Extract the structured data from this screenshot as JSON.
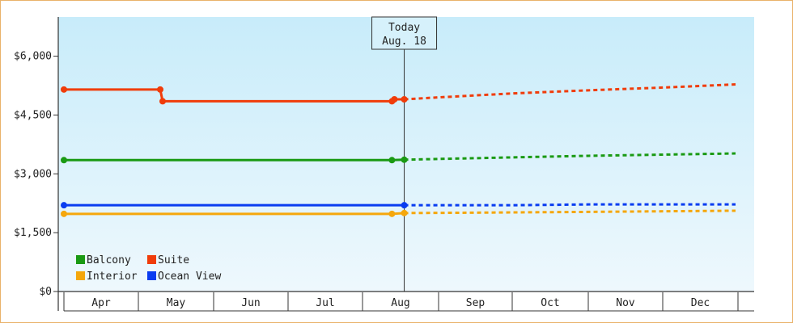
{
  "chart_data": {
    "type": "line",
    "currency": "$",
    "x_axis": {
      "months": [
        "Apr",
        "May",
        "Jun",
        "Jul",
        "Aug",
        "Sep",
        "Oct",
        "Nov",
        "Dec"
      ]
    },
    "y_axis": {
      "ylim": [
        0,
        7000
      ],
      "ticks": [
        0,
        1500,
        3000,
        4500,
        6000
      ],
      "tick_labels": [
        "$0",
        "$1,500",
        "$3,000",
        "$4,500",
        "$6,000"
      ]
    },
    "today": {
      "label": "Today",
      "date_label": "Aug. 18",
      "x": "2023-08-18"
    },
    "series": [
      {
        "name": "Suite",
        "color": "#f03c0a",
        "actual": [
          {
            "x": "2023-04-01",
            "y": 5150
          },
          {
            "x": "2023-05-10",
            "y": 5150
          },
          {
            "x": "2023-05-11",
            "y": 4850
          },
          {
            "x": "2023-08-13",
            "y": 4850
          },
          {
            "x": "2023-08-14",
            "y": 4900
          },
          {
            "x": "2023-08-18",
            "y": 4900
          }
        ],
        "forecast": [
          {
            "x": "2023-08-18",
            "y": 4900
          },
          {
            "x": "2023-09-01",
            "y": 4950
          },
          {
            "x": "2023-10-01",
            "y": 5050
          },
          {
            "x": "2023-11-01",
            "y": 5130
          },
          {
            "x": "2023-12-01",
            "y": 5200
          },
          {
            "x": "2023-12-31",
            "y": 5280
          }
        ]
      },
      {
        "name": "Balcony",
        "color": "#1a9a14",
        "actual": [
          {
            "x": "2023-04-01",
            "y": 3350
          },
          {
            "x": "2023-08-13",
            "y": 3350
          },
          {
            "x": "2023-08-18",
            "y": 3360
          }
        ],
        "forecast": [
          {
            "x": "2023-08-18",
            "y": 3360
          },
          {
            "x": "2023-09-01",
            "y": 3380
          },
          {
            "x": "2023-10-01",
            "y": 3420
          },
          {
            "x": "2023-11-01",
            "y": 3460
          },
          {
            "x": "2023-12-01",
            "y": 3490
          },
          {
            "x": "2023-12-31",
            "y": 3520
          }
        ]
      },
      {
        "name": "Ocean View",
        "color": "#0a3cf0",
        "actual": [
          {
            "x": "2023-04-01",
            "y": 2200
          },
          {
            "x": "2023-08-13",
            "y": 2200
          },
          {
            "x": "2023-08-18",
            "y": 2200
          }
        ],
        "forecast": [
          {
            "x": "2023-08-18",
            "y": 2200
          },
          {
            "x": "2023-10-01",
            "y": 2200
          },
          {
            "x": "2023-11-01",
            "y": 2220
          },
          {
            "x": "2023-12-31",
            "y": 2220
          }
        ]
      },
      {
        "name": "Interior",
        "color": "#f5a70c",
        "actual": [
          {
            "x": "2023-04-01",
            "y": 1980
          },
          {
            "x": "2023-08-13",
            "y": 1980
          },
          {
            "x": "2023-08-18",
            "y": 2000
          }
        ],
        "forecast": [
          {
            "x": "2023-08-18",
            "y": 2000
          },
          {
            "x": "2023-09-15",
            "y": 2010
          },
          {
            "x": "2023-11-01",
            "y": 2030
          },
          {
            "x": "2023-12-31",
            "y": 2060
          }
        ]
      }
    ],
    "legend": {
      "position": "bottom-left",
      "entries": [
        {
          "name": "Balcony",
          "color": "#1a9a14"
        },
        {
          "name": "Suite",
          "color": "#f03c0a"
        },
        {
          "name": "Interior",
          "color": "#f5a70c"
        },
        {
          "name": "Ocean View",
          "color": "#0a3cf0"
        }
      ]
    },
    "grid": false
  }
}
